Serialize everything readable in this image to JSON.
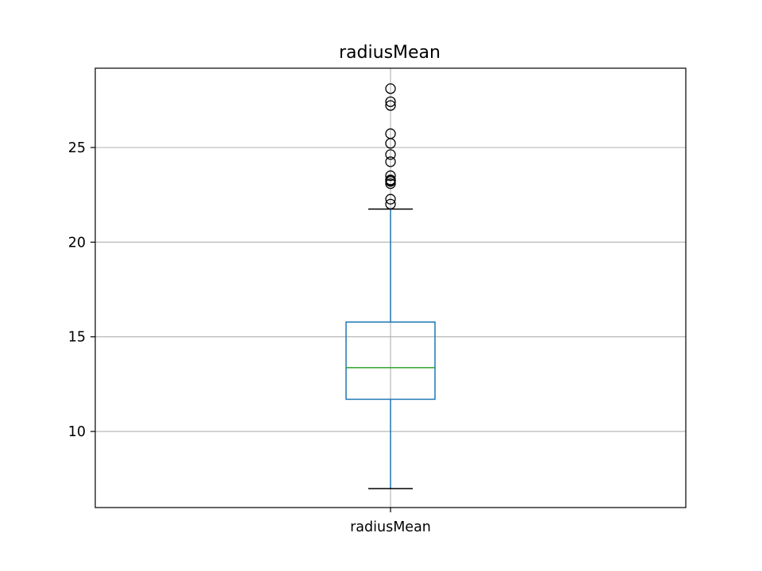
{
  "chart_data": {
    "type": "box",
    "title": "radiusMean",
    "xlabel": "",
    "ylabel": "",
    "categories": [
      "radiusMean"
    ],
    "ylim": [
      5.98,
      29.19
    ],
    "yticks": [
      10,
      15,
      20,
      25
    ],
    "grid": true,
    "boxes": [
      {
        "category": "radiusMean",
        "whisker_low": 6.98,
        "q1": 11.7,
        "median": 13.37,
        "q3": 15.78,
        "whisker_high": 21.75,
        "fliers": [
          22.01,
          22.27,
          23.09,
          23.21,
          23.27,
          23.29,
          23.51,
          24.25,
          24.63,
          25.22,
          25.73,
          27.22,
          27.42,
          28.11
        ]
      }
    ],
    "colors": {
      "box": "#1f77b4",
      "whisker": "#1f77b4",
      "cap": "#000000",
      "median": "#2ca02c",
      "flier_edge": "#000000",
      "grid": "#b0b0b0"
    }
  }
}
